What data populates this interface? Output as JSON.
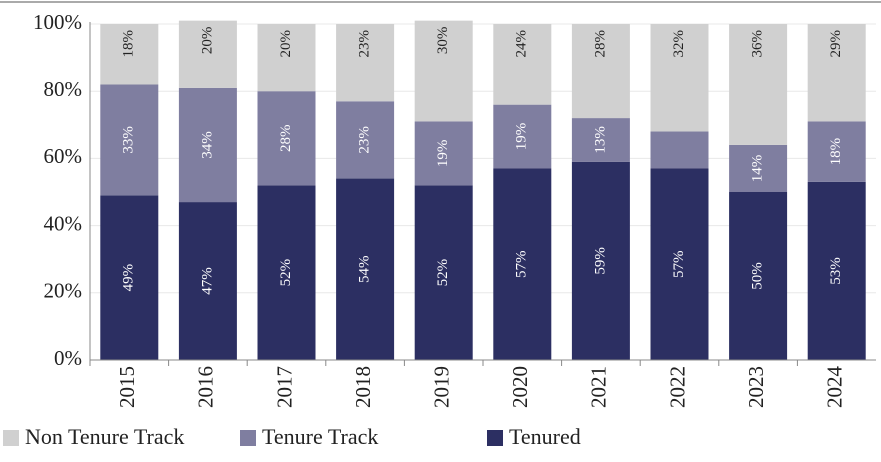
{
  "chart_data": {
    "type": "stacked_bar",
    "categories": [
      "2015",
      "2016",
      "2017",
      "2018",
      "2019",
      "2020",
      "2021",
      "2022",
      "2023",
      "2024"
    ],
    "series": [
      {
        "name": "Non Tenure Track",
        "color": "#d0d0d0",
        "values": [
          18,
          20,
          20,
          23,
          30,
          24,
          28,
          32,
          36,
          29
        ],
        "value_labels": [
          "18%",
          "20%",
          "20%",
          "23%",
          "30%",
          "24%",
          "28%",
          "32%",
          "36%",
          "29%"
        ]
      },
      {
        "name": "Tenure Track",
        "color": "#7f7ea0",
        "values": [
          33,
          34,
          28,
          23,
          19,
          19,
          13,
          11,
          14,
          18
        ],
        "value_labels": [
          "33%",
          "34%",
          "28%",
          "23%",
          "19%",
          "19%",
          "13%",
          null,
          "14%",
          "18%"
        ]
      },
      {
        "name": "Tenured",
        "color": "#2c2f62",
        "values": [
          49,
          47,
          52,
          54,
          52,
          57,
          59,
          57,
          50,
          53
        ],
        "value_labels": [
          "49%",
          "47%",
          "52%",
          "54%",
          "52%",
          "57%",
          "59%",
          "57%",
          "50%",
          "53%"
        ]
      }
    ],
    "ylim": [
      0,
      100
    ],
    "yticks": [
      {
        "value": 0,
        "label": "0%"
      },
      {
        "value": 20,
        "label": "20%"
      },
      {
        "value": 40,
        "label": "40%"
      },
      {
        "value": 60,
        "label": "60%"
      },
      {
        "value": 80,
        "label": "80%"
      },
      {
        "value": 100,
        "label": "100%"
      }
    ],
    "grid": true
  }
}
